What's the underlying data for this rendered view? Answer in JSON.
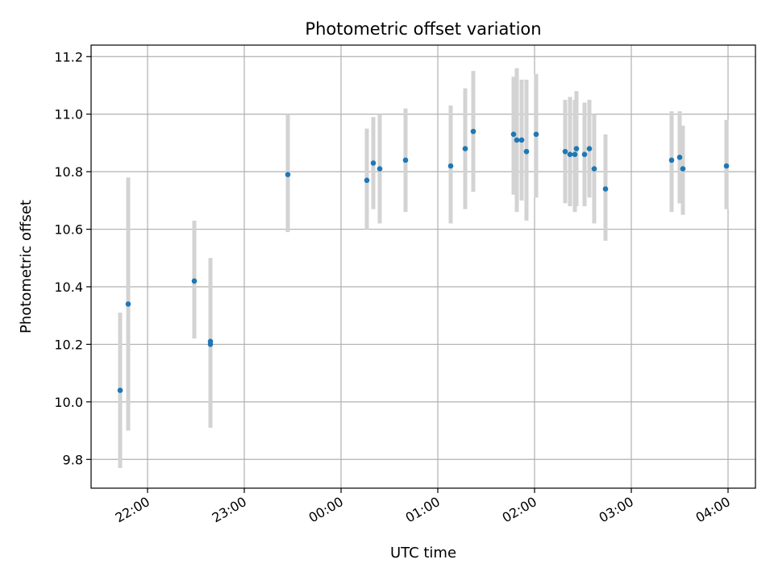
{
  "chart_data": {
    "type": "scatter",
    "title": "Photometric offset variation",
    "xlabel": "UTC time",
    "ylabel": "Photometric offset",
    "x_tick_labels": [
      "22:00",
      "23:00",
      "00:00",
      "01:00",
      "02:00",
      "03:00",
      "04:00"
    ],
    "y_tick_labels": [
      "9.8",
      "10.0",
      "10.2",
      "10.4",
      "10.6",
      "10.8",
      "11.0",
      "11.2"
    ],
    "xlim": [
      "21:25",
      "04:17"
    ],
    "ylim": [
      9.7,
      11.24
    ],
    "grid": true,
    "colors": {
      "points": "#1f77b4",
      "errorbars": "#d3d3d3",
      "grid": "#b0b0b0"
    },
    "series": [
      {
        "points": [
          {
            "x": "21:43",
            "y": 10.04,
            "low": 9.77,
            "high": 10.31
          },
          {
            "x": "21:48",
            "y": 10.34,
            "low": 9.9,
            "high": 10.78
          },
          {
            "x": "22:29",
            "y": 10.42,
            "low": 10.22,
            "high": 10.63
          },
          {
            "x": "22:39",
            "y": 10.21,
            "low": 9.92,
            "high": 10.5
          },
          {
            "x": "22:39",
            "y": 10.2,
            "low": 9.91,
            "high": 10.49
          },
          {
            "x": "23:27",
            "y": 10.79,
            "low": 10.59,
            "high": 11.0
          },
          {
            "x": "00:16",
            "y": 10.77,
            "low": 10.6,
            "high": 10.95
          },
          {
            "x": "00:20",
            "y": 10.83,
            "low": 10.67,
            "high": 10.99
          },
          {
            "x": "00:24",
            "y": 10.81,
            "low": 10.62,
            "high": 11.0
          },
          {
            "x": "00:40",
            "y": 10.84,
            "low": 10.66,
            "high": 11.02
          },
          {
            "x": "01:08",
            "y": 10.82,
            "low": 10.62,
            "high": 11.03
          },
          {
            "x": "01:17",
            "y": 10.88,
            "low": 10.67,
            "high": 11.09
          },
          {
            "x": "01:22",
            "y": 10.94,
            "low": 10.73,
            "high": 11.15
          },
          {
            "x": "01:47",
            "y": 10.93,
            "low": 10.72,
            "high": 11.13
          },
          {
            "x": "01:49",
            "y": 10.91,
            "low": 10.66,
            "high": 11.16
          },
          {
            "x": "01:52",
            "y": 10.91,
            "low": 10.7,
            "high": 11.12
          },
          {
            "x": "01:55",
            "y": 10.87,
            "low": 10.63,
            "high": 11.12
          },
          {
            "x": "02:01",
            "y": 10.93,
            "low": 10.71,
            "high": 11.14
          },
          {
            "x": "02:19",
            "y": 10.87,
            "low": 10.69,
            "high": 11.05
          },
          {
            "x": "02:22",
            "y": 10.86,
            "low": 10.68,
            "high": 11.06
          },
          {
            "x": "02:25",
            "y": 10.86,
            "low": 10.66,
            "high": 11.05
          },
          {
            "x": "02:26",
            "y": 10.88,
            "low": 10.68,
            "high": 11.08
          },
          {
            "x": "02:31",
            "y": 10.86,
            "low": 10.68,
            "high": 11.04
          },
          {
            "x": "02:34",
            "y": 10.88,
            "low": 10.71,
            "high": 11.05
          },
          {
            "x": "02:37",
            "y": 10.81,
            "low": 10.62,
            "high": 11.0
          },
          {
            "x": "02:44",
            "y": 10.74,
            "low": 10.56,
            "high": 10.93
          },
          {
            "x": "03:25",
            "y": 10.84,
            "low": 10.66,
            "high": 11.01
          },
          {
            "x": "03:30",
            "y": 10.85,
            "low": 10.69,
            "high": 11.01
          },
          {
            "x": "03:32",
            "y": 10.81,
            "low": 10.65,
            "high": 10.96
          },
          {
            "x": "03:59",
            "y": 10.82,
            "low": 10.67,
            "high": 10.98
          }
        ]
      }
    ]
  }
}
